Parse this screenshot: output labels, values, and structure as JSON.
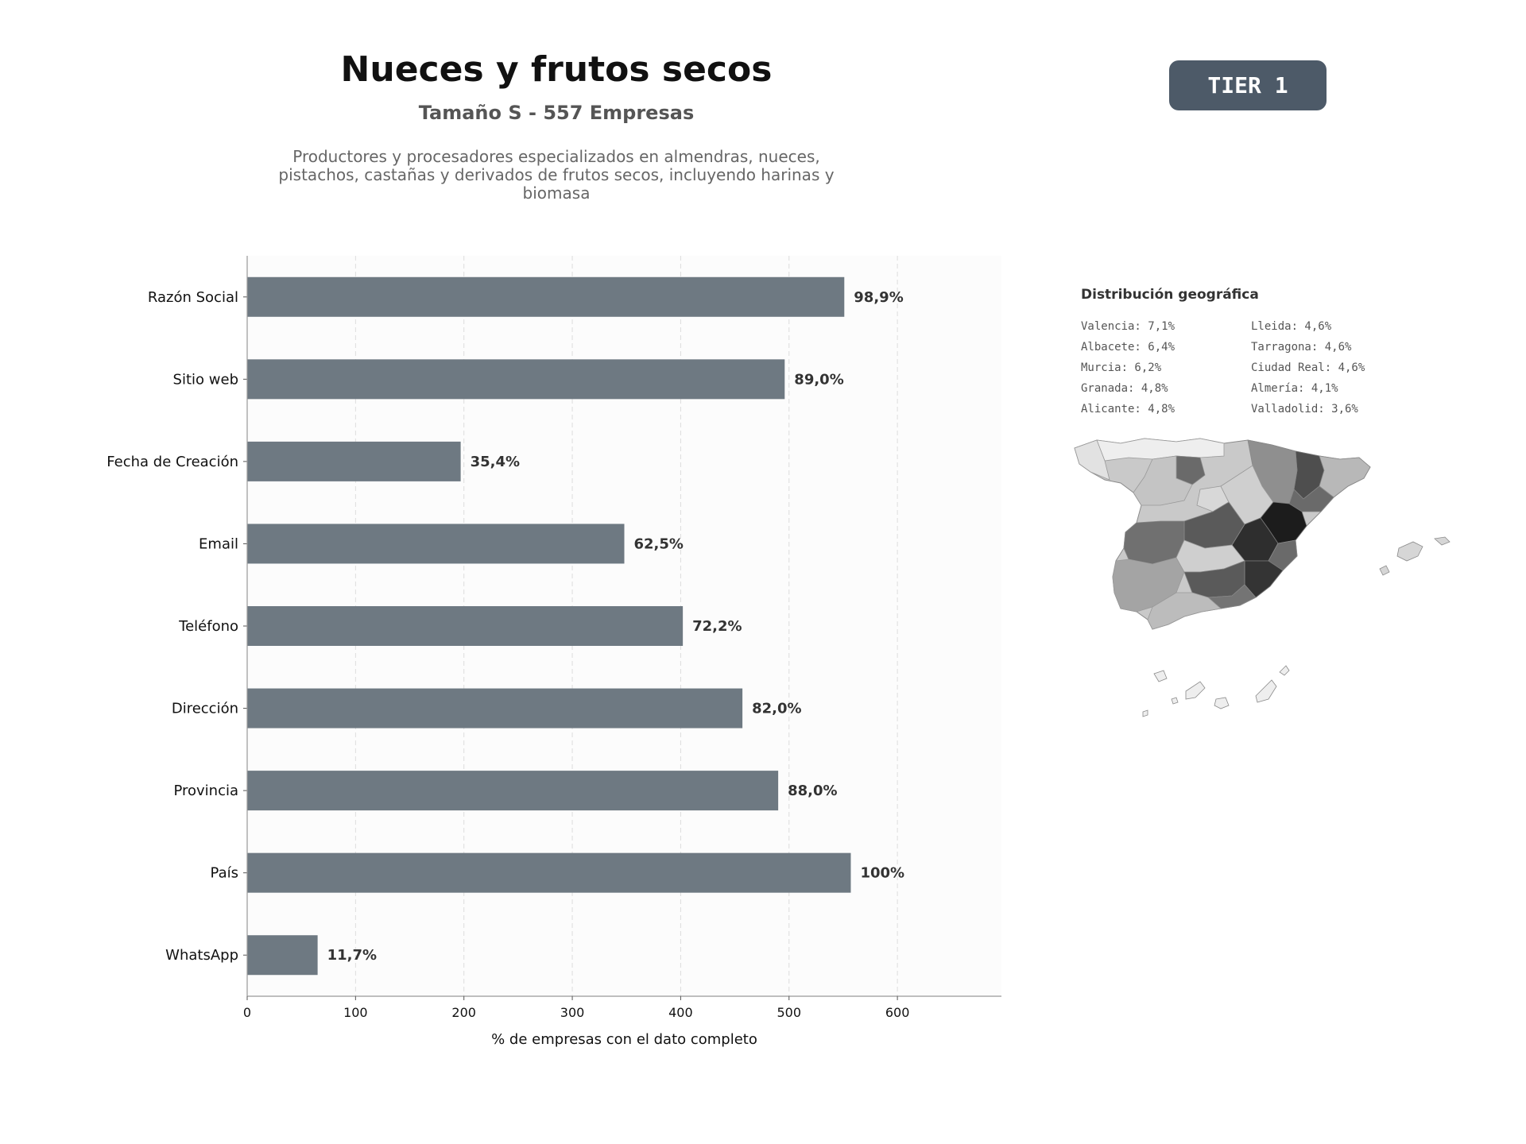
{
  "header": {
    "title": "Nueces y frutos secos",
    "subtitle": "Tamaño S - 557 Empresas",
    "description": "Productores y procesadores especializados en almendras, nueces, pistachos, castañas y derivados de frutos secos, incluyendo harinas y biomasa",
    "tier": "TIER 1"
  },
  "colors": {
    "bar": "#6e7982",
    "badge": "#4d5a68",
    "plot_bg": "#fcfcfc"
  },
  "chart_data": {
    "type": "bar",
    "orientation": "horizontal",
    "categories": [
      "Razón Social",
      "Sitio web",
      "Fecha de Creación",
      "Email",
      "Teléfono",
      "Dirección",
      "Provincia",
      "País",
      "WhatsApp"
    ],
    "values": [
      551,
      496,
      197,
      348,
      402,
      457,
      490,
      557,
      65
    ],
    "value_labels": [
      "98,9%",
      "89,0%",
      "35,4%",
      "62,5%",
      "72,2%",
      "82,0%",
      "88,0%",
      "100%",
      "11,7%"
    ],
    "xlabel": "% de empresas con el dato completo",
    "xticks": [
      0,
      100,
      200,
      300,
      400,
      500,
      600
    ],
    "xlim": [
      0,
      696
    ],
    "grid": "vertical dashed"
  },
  "geo": {
    "title": "Distribución geográfica",
    "items": [
      "Valencia: 7,1%",
      "Albacete: 6,4%",
      "Murcia: 6,2%",
      "Granada: 4,8%",
      "Alicante: 4,8%",
      "Lleida: 4,6%",
      "Tarragona: 4,6%",
      "Ciudad Real: 4,6%",
      "Almería: 4,1%",
      "Valladolid: 3,6%"
    ]
  }
}
